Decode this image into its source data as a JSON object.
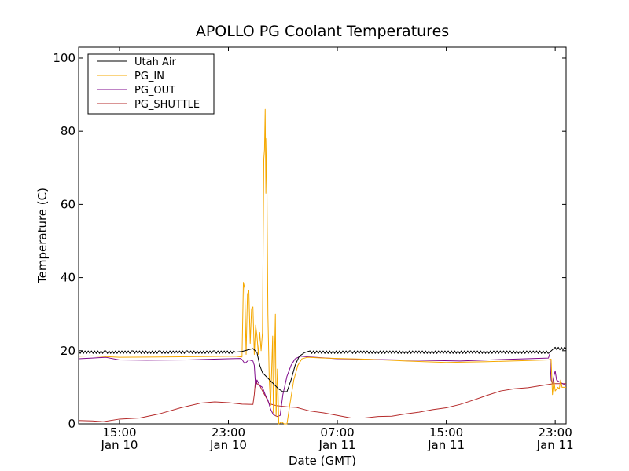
{
  "chart_data": {
    "type": "line",
    "title": "APOLLO PG Coolant Temperatures",
    "xlabel": "Date (GMT)",
    "ylabel": "Temperature (C)",
    "x_unit": "hours since Jan 10 12:00 GMT",
    "xlim": [
      0,
      35.8
    ],
    "ylim": [
      0,
      103
    ],
    "yticks": [
      0,
      20,
      40,
      60,
      80,
      100
    ],
    "xticks": [
      {
        "x": 3,
        "line1": "15:00",
        "line2": "Jan 10"
      },
      {
        "x": 11,
        "line1": "23:00",
        "line2": "Jan 10"
      },
      {
        "x": 19,
        "line1": "07:00",
        "line2": "Jan 11"
      },
      {
        "x": 27,
        "line1": "15:00",
        "line2": "Jan 11"
      },
      {
        "x": 35,
        "line1": "23:00",
        "line2": "Jan 11"
      }
    ],
    "legend_position": "top-left",
    "series": [
      {
        "name": "Utah Air",
        "color": "#000000",
        "oscillate": 0.35,
        "points": [
          [
            0,
            19.6
          ],
          [
            2,
            19.6
          ],
          [
            4,
            19.6
          ],
          [
            6,
            19.6
          ],
          [
            8,
            19.6
          ],
          [
            10,
            19.6
          ],
          [
            11.5,
            19.6
          ],
          [
            12,
            19.8
          ],
          [
            12.4,
            20.2
          ],
          [
            12.8,
            20.6
          ],
          [
            13.1,
            19.5
          ],
          [
            13.3,
            16
          ],
          [
            13.5,
            14
          ],
          [
            13.9,
            12.5
          ],
          [
            14.3,
            11
          ],
          [
            14.7,
            9.5
          ],
          [
            15.0,
            8.8
          ],
          [
            15.3,
            8.8
          ],
          [
            15.6,
            12
          ],
          [
            15.9,
            16
          ],
          [
            16.2,
            18.5
          ],
          [
            16.6,
            19.5
          ],
          [
            17,
            19.6
          ],
          [
            20,
            19.6
          ],
          [
            25,
            19.6
          ],
          [
            30,
            19.6
          ],
          [
            34.6,
            19.6
          ],
          [
            35,
            20.6
          ],
          [
            35.8,
            20.6
          ]
        ]
      },
      {
        "name": "PG_IN",
        "color": "#f5a800",
        "oscillate": 0,
        "points": [
          [
            0,
            18.5
          ],
          [
            1,
            18.6
          ],
          [
            3,
            18.2
          ],
          [
            6,
            18.3
          ],
          [
            9,
            18.4
          ],
          [
            11.5,
            18.5
          ],
          [
            12.0,
            18.3
          ],
          [
            12.1,
            38.7
          ],
          [
            12.2,
            37
          ],
          [
            12.3,
            19
          ],
          [
            12.4,
            35.5
          ],
          [
            12.5,
            36.5
          ],
          [
            12.6,
            22
          ],
          [
            12.7,
            31.5
          ],
          [
            12.8,
            32
          ],
          [
            12.9,
            19
          ],
          [
            13.0,
            27
          ],
          [
            13.1,
            24
          ],
          [
            13.2,
            19
          ],
          [
            13.3,
            25
          ],
          [
            13.4,
            20
          ],
          [
            13.5,
            25
          ],
          [
            13.6,
            72.5
          ],
          [
            13.65,
            75
          ],
          [
            13.7,
            86
          ],
          [
            13.75,
            63
          ],
          [
            13.8,
            78
          ],
          [
            13.9,
            30
          ],
          [
            14.0,
            12
          ],
          [
            14.1,
            5
          ],
          [
            14.25,
            24
          ],
          [
            14.3,
            3
          ],
          [
            14.45,
            30
          ],
          [
            14.5,
            2
          ],
          [
            14.6,
            15
          ],
          [
            14.7,
            0
          ],
          [
            14.9,
            0.5
          ],
          [
            15.1,
            0
          ],
          [
            15.3,
            0
          ],
          [
            15.5,
            5
          ],
          [
            15.8,
            12
          ],
          [
            16.1,
            16
          ],
          [
            16.4,
            17.8
          ],
          [
            16.8,
            18.2
          ],
          [
            18,
            18.0
          ],
          [
            21,
            17.7
          ],
          [
            24,
            17.2
          ],
          [
            27,
            16.8
          ],
          [
            30,
            17.0
          ],
          [
            34.5,
            17.5
          ],
          [
            34.7,
            17.7
          ],
          [
            34.8,
            8
          ],
          [
            34.9,
            12
          ],
          [
            35.0,
            9
          ],
          [
            35.2,
            10
          ],
          [
            35.3,
            9.5
          ],
          [
            35.4,
            12
          ],
          [
            35.5,
            10
          ],
          [
            35.8,
            10
          ]
        ]
      },
      {
        "name": "PG_OUT",
        "color": "#7f0a8c",
        "oscillate": 0,
        "points": [
          [
            0,
            17.8
          ],
          [
            1,
            18
          ],
          [
            2,
            18.2
          ],
          [
            3,
            17.5
          ],
          [
            5,
            17.4
          ],
          [
            8,
            17.5
          ],
          [
            11,
            17.8
          ],
          [
            11.9,
            17.9
          ],
          [
            12.0,
            17.6
          ],
          [
            12.2,
            16.5
          ],
          [
            12.5,
            17.5
          ],
          [
            12.8,
            17.2
          ],
          [
            12.9,
            16
          ],
          [
            13.0,
            10
          ],
          [
            13.1,
            12
          ],
          [
            13.3,
            10.5
          ],
          [
            13.5,
            10
          ],
          [
            13.7,
            8
          ],
          [
            13.9,
            6.5
          ],
          [
            14.1,
            4
          ],
          [
            14.3,
            2.5
          ],
          [
            14.6,
            2
          ],
          [
            14.8,
            2.3
          ],
          [
            15.0,
            8
          ],
          [
            15.3,
            13
          ],
          [
            15.6,
            16
          ],
          [
            15.9,
            17.8
          ],
          [
            16.3,
            18.5
          ],
          [
            17,
            18.3
          ],
          [
            19,
            17.8
          ],
          [
            22,
            17.6
          ],
          [
            25,
            17.4
          ],
          [
            28,
            17.2
          ],
          [
            31,
            17.6
          ],
          [
            34.5,
            18
          ],
          [
            34.6,
            19.2
          ],
          [
            34.7,
            12
          ],
          [
            34.8,
            11
          ],
          [
            34.9,
            13
          ],
          [
            35.0,
            14.5
          ],
          [
            35.1,
            12
          ],
          [
            35.3,
            11.5
          ],
          [
            35.8,
            10.5
          ]
        ]
      },
      {
        "name": "PG_SHUTTLE",
        "color": "#b52b2b",
        "oscillate": 0,
        "points": [
          [
            0,
            0.9
          ],
          [
            1,
            0.8
          ],
          [
            1.8,
            0.6
          ],
          [
            3,
            1.3
          ],
          [
            4.5,
            1.6
          ],
          [
            6,
            2.8
          ],
          [
            7.5,
            4.4
          ],
          [
            9,
            5.7
          ],
          [
            10,
            6.0
          ],
          [
            11,
            5.8
          ],
          [
            12,
            5.4
          ],
          [
            12.8,
            5.3
          ],
          [
            12.9,
            8
          ],
          [
            13.0,
            12.5
          ],
          [
            13.1,
            11
          ],
          [
            13.3,
            10.5
          ],
          [
            13.5,
            9
          ],
          [
            13.8,
            7
          ],
          [
            14.0,
            5.5
          ],
          [
            14.5,
            5.0
          ],
          [
            15.5,
            4.6
          ],
          [
            16,
            4.5
          ],
          [
            17,
            3.5
          ],
          [
            18,
            3.0
          ],
          [
            19,
            2.3
          ],
          [
            20,
            1.6
          ],
          [
            21,
            1.6
          ],
          [
            22,
            2.0
          ],
          [
            23,
            2.1
          ],
          [
            24,
            2.7
          ],
          [
            25,
            3.2
          ],
          [
            26,
            3.9
          ],
          [
            27,
            4.4
          ],
          [
            28,
            5.3
          ],
          [
            29,
            6.5
          ],
          [
            30,
            7.8
          ],
          [
            31,
            9.0
          ],
          [
            32,
            9.6
          ],
          [
            33,
            9.9
          ],
          [
            34,
            10.5
          ],
          [
            34.7,
            10.9
          ],
          [
            35,
            11.0
          ],
          [
            35.8,
            11.0
          ]
        ]
      }
    ]
  }
}
